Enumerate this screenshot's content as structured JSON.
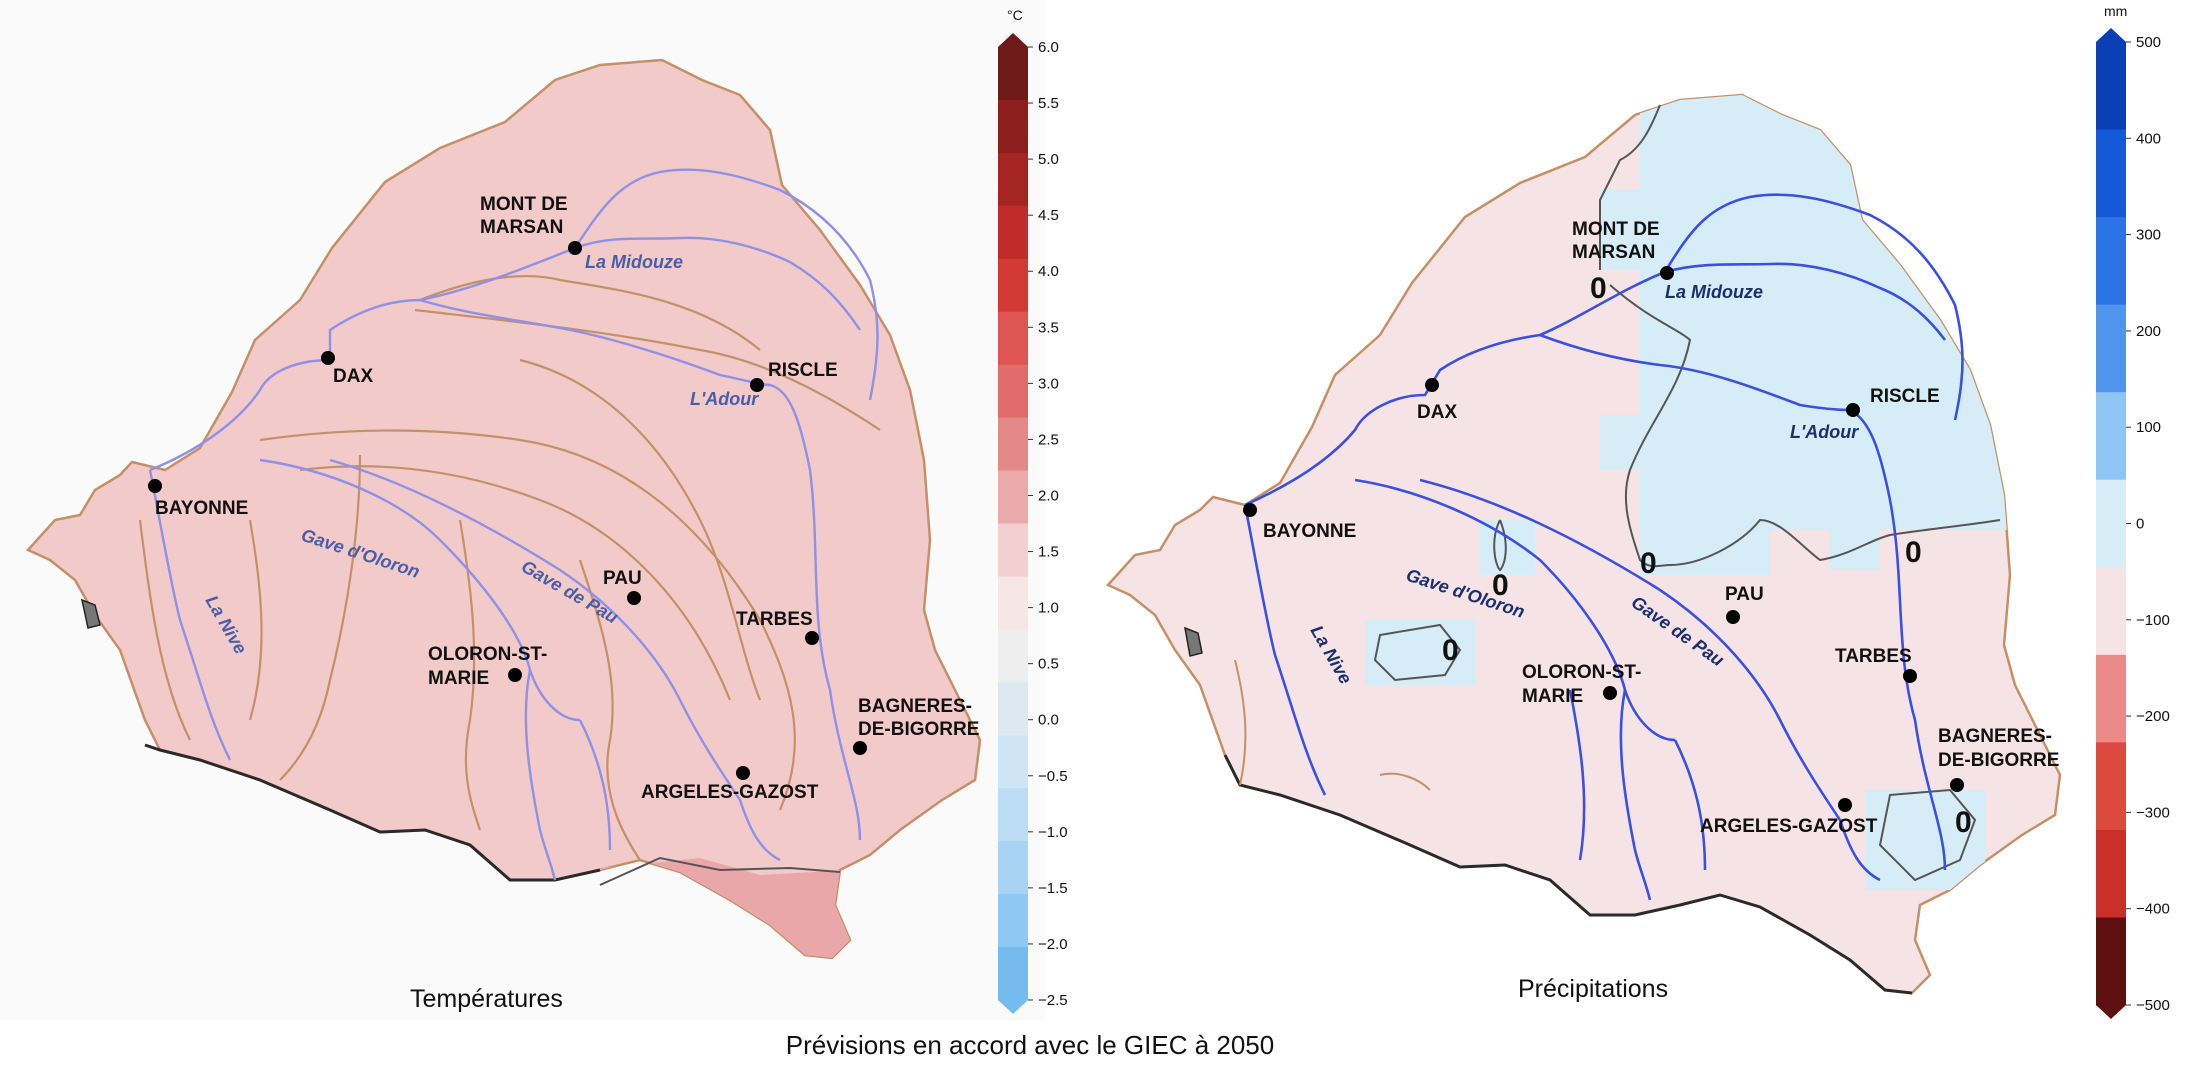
{
  "caption": "Prévisions en accord avec le GIEC à 2050",
  "panels": {
    "temperature": {
      "title": "Températures",
      "scale_unit": "°C",
      "ticks": [
        "6.0",
        "5.5",
        "5.0",
        "4.5",
        "4.0",
        "3.5",
        "3.0",
        "2.5",
        "2.0",
        "1.5",
        "1.0",
        "0.5",
        "0.0",
        "−0.5",
        "−1.0",
        "−1.5",
        "−2.0",
        "−2.5"
      ],
      "colors": [
        "#6e1a1a",
        "#8c1e1e",
        "#a52523",
        "#bf2c2a",
        "#d43a35",
        "#de5553",
        "#e06d6b",
        "#e4898a",
        "#eaa9aa",
        "#f2cfd0",
        "#f7e6e6",
        "#eeeeee",
        "#dde9f1",
        "#cfe4f4",
        "#bcdcf4",
        "#a8d3f3",
        "#8fc8f1",
        "#75bbee"
      ],
      "fill_main": "#f2caca",
      "fill_hot": "#eaa7a9",
      "cities": {
        "mont_de_marsan_1": "MONT DE",
        "mont_de_marsan_2": "MARSAN",
        "dax": "DAX",
        "riscle": "RISCLE",
        "bayonne": "BAYONNE",
        "pau": "PAU",
        "tarbes": "TARBES",
        "oloron_1": "OLORON-ST-",
        "oloron_2": "MARIE",
        "bagneres_1": "BAGNERES-",
        "bagneres_2": "DE-BIGORRE",
        "argeles": "ARGELES-GAZOST"
      },
      "rivers": {
        "midouze": "La Midouze",
        "adour": "L'Adour",
        "gave_oloron": "Gave d'Oloron",
        "gave_pau": "Gave de Pau",
        "nive": "La Nive"
      }
    },
    "precipitation": {
      "title": "Précipitations",
      "scale_unit": "mm",
      "ticks": [
        "500",
        "400",
        "300",
        "200",
        "100",
        "0",
        "−100",
        "−200",
        "−300",
        "−400",
        "−500"
      ],
      "colors": [
        "#0a3fb5",
        "#1459d6",
        "#2b74e6",
        "#4f95ee",
        "#8ec5f2",
        "#d7edf8",
        "#f6e3e6",
        "#ec8b86",
        "#dc4a3f",
        "#c9302a",
        "#5e1010"
      ],
      "fill_dry": "#f6e3e6",
      "fill_wet": "#d6edf8",
      "contour_label": "0",
      "cities": {
        "mont_de_marsan_1": "MONT DE",
        "mont_de_marsan_2": "MARSAN",
        "dax": "DAX",
        "riscle": "RISCLE",
        "bayonne": "BAYONNE",
        "pau": "PAU",
        "tarbes": "TARBES",
        "oloron_1": "OLORON-ST-",
        "oloron_2": "MARIE",
        "bagneres_1": "BAGNERES-",
        "bagneres_2": "DE-BIGORRE",
        "argeles": "ARGELES-GAZOST"
      },
      "rivers": {
        "midouze": "La Midouze",
        "adour": "L'Adour",
        "gave_oloron": "Gave d'Oloron",
        "gave_pau": "Gave de Pau",
        "nive": "La Nive"
      }
    }
  }
}
